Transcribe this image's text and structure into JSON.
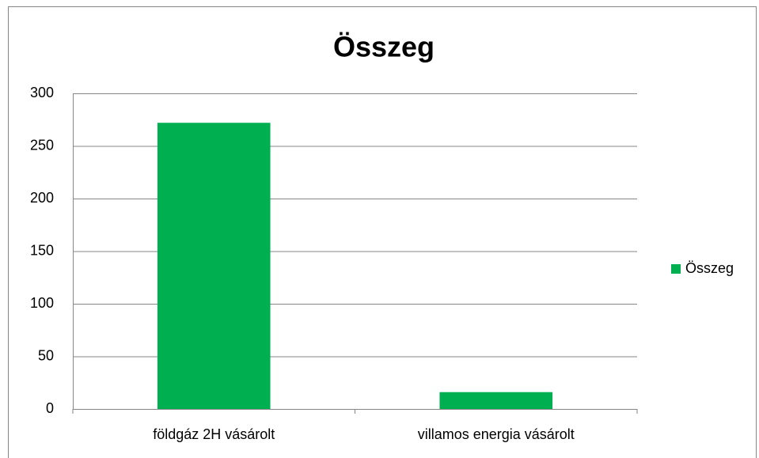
{
  "chart_data": {
    "type": "bar",
    "title": "Összeg",
    "categories": [
      "földgáz 2H vásárolt",
      "villamos energia vásárolt"
    ],
    "series": [
      {
        "name": "Összeg",
        "color": "#00b050",
        "values": [
          272,
          16
        ]
      }
    ],
    "ylim": [
      0,
      300
    ],
    "yticks": [
      0,
      50,
      100,
      150,
      200,
      250,
      300
    ],
    "grid": true,
    "legend": "right"
  }
}
